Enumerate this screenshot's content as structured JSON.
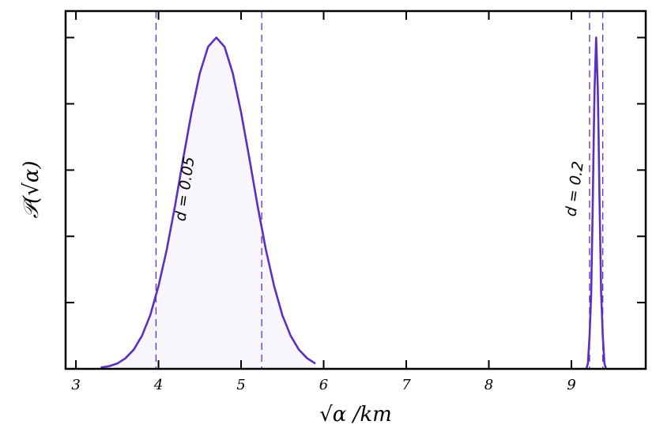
{
  "chart_data": {
    "type": "line",
    "x_label": "√α /km",
    "y_label": "𝒫(√α)",
    "annotations": [
      "d = 0.05",
      "d = 0.2"
    ],
    "xlim": [
      2.875,
      9.9
    ],
    "xticks": [
      3,
      4,
      5,
      6,
      7,
      8,
      9
    ],
    "ylim": [
      0,
      5.4
    ],
    "yticks": [
      1,
      2,
      3,
      4,
      5
    ],
    "vlines": [
      3.97,
      5.25,
      9.22,
      9.38
    ],
    "series": [
      {
        "color": "#5b2fbf",
        "fill": "#f8f6fc",
        "x": [
          3.3,
          3.4,
          3.5,
          3.6,
          3.7,
          3.8,
          3.9,
          4.0,
          4.1,
          4.2,
          4.3,
          4.4,
          4.5,
          4.6,
          4.7,
          4.8,
          4.9,
          5.0,
          5.1,
          5.2,
          5.3,
          5.4,
          5.5,
          5.6,
          5.7,
          5.8,
          5.9
        ],
        "values": [
          0.02,
          0.04,
          0.08,
          0.16,
          0.29,
          0.5,
          0.81,
          1.25,
          1.8,
          2.46,
          3.18,
          3.87,
          4.46,
          4.86,
          5,
          4.86,
          4.46,
          3.87,
          3.18,
          2.46,
          1.8,
          1.25,
          0.81,
          0.5,
          0.29,
          0.16,
          0.08
        ]
      },
      {
        "color": "#5b2fbf",
        "x": [
          9.18,
          9.2,
          9.22,
          9.24,
          9.26,
          9.27,
          9.28,
          9.3,
          9.32,
          9.33,
          9.34,
          9.36,
          9.38,
          9.4,
          9.42
        ],
        "values": [
          0,
          0.08,
          0.5,
          1.15,
          2.6,
          3.46,
          4.2,
          5,
          4.2,
          3.46,
          2.6,
          1.15,
          0.5,
          0.08,
          0
        ]
      }
    ]
  }
}
